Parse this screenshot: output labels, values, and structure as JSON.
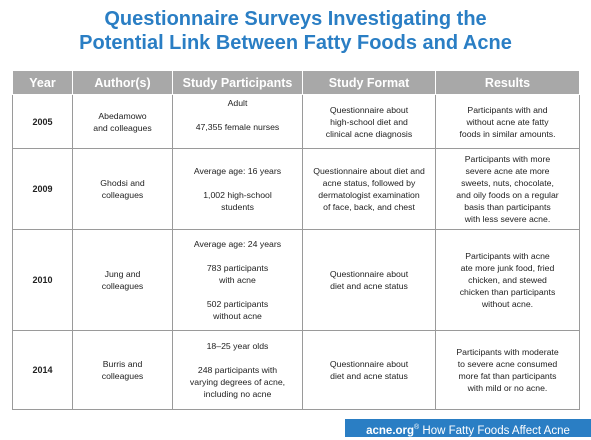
{
  "title": {
    "line1": "Questionnaire Surveys Investigating the",
    "line2": "Potential Link Between Fatty Foods and Acne"
  },
  "table": {
    "headers": [
      "Year",
      "Author(s)",
      "Study Participants",
      "Study Format",
      "Results"
    ],
    "rows": [
      {
        "year": "2005",
        "authors": "Abedamowo\nand colleagues",
        "participants": "Adult\n\n47,355 female nurses",
        "format": "Questionnaire about\nhigh-school diet and\nclinical acne diagnosis",
        "results": "Participants with and\nwithout acne ate fatty\nfoods in similar amounts."
      },
      {
        "year": "2009",
        "authors": "Ghodsi and\ncolleagues",
        "participants": "Average age: 16 years\n\n1,002 high-school\nstudents",
        "format": "Questionnaire about diet and\nacne status, followed by\ndermatologist examination\nof face, back, and chest",
        "results": "Participants with more\nsevere acne ate more\nsweets, nuts, chocolate,\nand oily foods on a regular\nbasis than participants\nwith less severe acne."
      },
      {
        "year": "2010",
        "authors": "Jung and\ncolleagues",
        "participants": "Average age: 24 years\n\n783 participants\nwith acne\n\n502 participants\nwithout acne",
        "format": "Questionnaire about\ndiet and acne status",
        "results": "Participants with acne\nate more junk food, fried\nchicken, and stewed\nchicken than participants\nwithout acne."
      },
      {
        "year": "2014",
        "authors": "Burris and\ncolleagues",
        "participants": "18–25 year olds\n\n248 participants with\nvarying degrees of acne,\nincluding no acne",
        "format": "Questionnaire about\ndiet and acne status",
        "results": "Participants with moderate\nto severe acne consumed\nmore fat than participants\nwith mild or no acne."
      }
    ]
  },
  "footer": {
    "brand": "acne.org",
    "reg": "®",
    "caption": "How Fatty Foods Affect Acne"
  },
  "colors": {
    "title": "#2a7ec4",
    "header_bg": "#a8a8a8",
    "footer_bg": "#2a7ec4"
  }
}
